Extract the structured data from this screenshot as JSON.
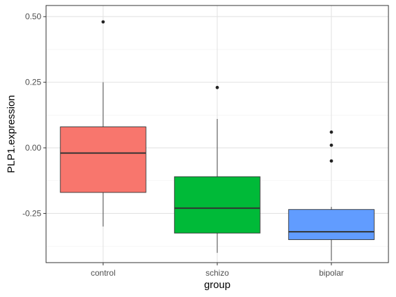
{
  "chart_data": {
    "type": "boxplot",
    "title": "",
    "xlabel": "group",
    "ylabel": "PLP1.expression",
    "categories": [
      "control",
      "schizo",
      "bipolar"
    ],
    "ylim": [
      -0.4,
      0.5
    ],
    "y_ticks": [
      -0.25,
      0.0,
      0.25,
      0.5
    ],
    "y_tick_labels": [
      "-0.25",
      "0.00",
      "0.25",
      "0.50"
    ],
    "grid": true,
    "legend": "none",
    "boxes": [
      {
        "category": "control",
        "whisker_low": -0.3,
        "q1": -0.17,
        "median": -0.02,
        "q3": 0.08,
        "whisker_high": 0.25,
        "outliers": [
          0.48
        ],
        "fill": "#F8766D"
      },
      {
        "category": "schizo",
        "whisker_low": -0.4,
        "q1": -0.325,
        "median": -0.23,
        "q3": -0.11,
        "whisker_high": 0.11,
        "outliers": [
          0.23
        ],
        "fill": "#00BA38"
      },
      {
        "category": "bipolar",
        "whisker_low": -0.43,
        "q1": -0.35,
        "median": -0.32,
        "q3": -0.235,
        "whisker_high": -0.225,
        "outliers": [
          0.06,
          0.01,
          -0.05
        ],
        "fill": "#619CFF"
      }
    ]
  }
}
